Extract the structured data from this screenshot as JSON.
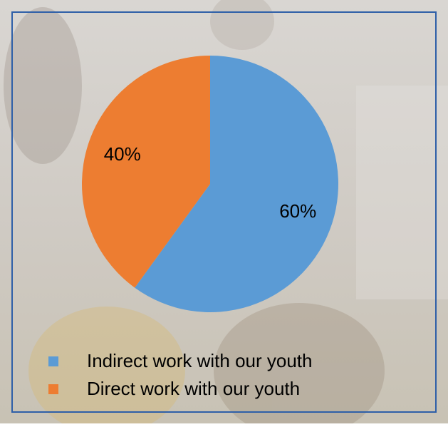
{
  "chart_data": {
    "type": "pie",
    "categories": [
      "Indirect work with our youth",
      "Direct work with our youth"
    ],
    "values": [
      60,
      40
    ],
    "value_labels": [
      "60%",
      "40%"
    ],
    "colors": [
      "#5b9bd5",
      "#ed7d31"
    ]
  }
}
